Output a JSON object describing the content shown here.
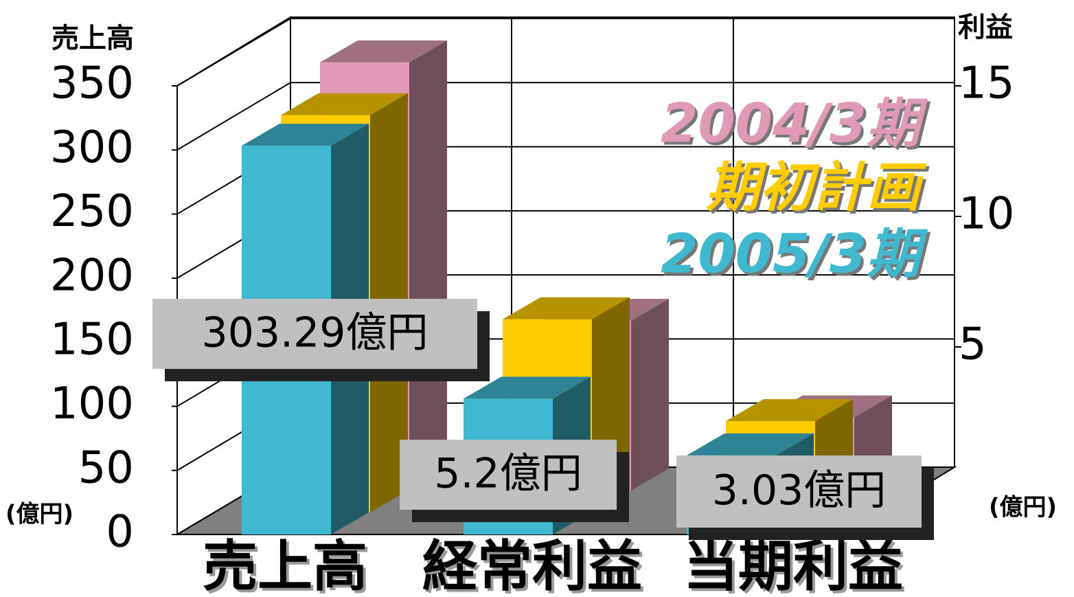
{
  "chart_data": {
    "type": "bar",
    "y_title": "売上高",
    "y2_title": "利益",
    "y_unit": "(億円)",
    "y2_unit": "(億円)",
    "categories": [
      "売上高",
      "経常利益",
      "当期利益"
    ],
    "category_axis": [
      "y",
      "y2",
      "y2"
    ],
    "series": [
      {
        "name": "2004/3期",
        "color": "#e09ab5",
        "values": [
          334,
          6.5,
          2.8
        ]
      },
      {
        "name": "期初計画",
        "color": "#ffcc00",
        "values": [
          310,
          7.4,
          3.5
        ]
      },
      {
        "name": "2005/3期",
        "color": "#40b8d0",
        "values": [
          303.29,
          5.2,
          3.03
        ],
        "value_labels": [
          "303.29億円",
          "5.2億円",
          "3.03億円"
        ]
      }
    ],
    "ylim": [
      0,
      350
    ],
    "yticks": [
      0,
      50,
      100,
      150,
      200,
      250,
      300,
      350
    ],
    "y2lim": [
      0,
      15
    ],
    "y2ticks": [
      5,
      10,
      15
    ],
    "grid": true
  }
}
